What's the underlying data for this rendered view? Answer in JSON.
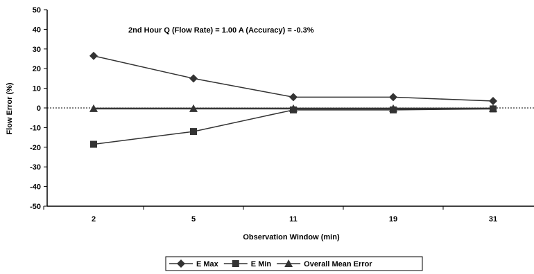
{
  "chart_data": {
    "type": "line",
    "title": "",
    "annotation": "2nd Hour Q (Flow Rate) = 1.00    A (Accuracy) = -0.3%",
    "xlabel": "Observation Window (min)",
    "ylabel": "Flow Error (%)",
    "categories": [
      "2",
      "5",
      "11",
      "19",
      "31"
    ],
    "ylim": [
      -50,
      50
    ],
    "yticks": [
      50,
      40,
      30,
      20,
      10,
      0,
      -10,
      -20,
      -30,
      -40,
      -50
    ],
    "ytick_labels": [
      "50",
      "40",
      "30",
      "20",
      "10",
      "0",
      "-10",
      "-20",
      "-30",
      "-40",
      "-50"
    ],
    "zero_reference_line": true,
    "grid": false,
    "legend_position": "bottom",
    "series": [
      {
        "name": "E Max",
        "marker": "diamond",
        "values": [
          26.5,
          15,
          5.5,
          5.5,
          3.5
        ]
      },
      {
        "name": "E Min",
        "marker": "square",
        "values": [
          -18.5,
          -12,
          -1,
          -1,
          -0.5
        ]
      },
      {
        "name": "Overall Mean Error",
        "marker": "triangle",
        "values": [
          -0.3,
          -0.3,
          -0.3,
          -0.3,
          -0.3
        ]
      }
    ],
    "colors": {
      "lines": "#333333",
      "markers": "#333333",
      "axis": "#000000"
    }
  }
}
